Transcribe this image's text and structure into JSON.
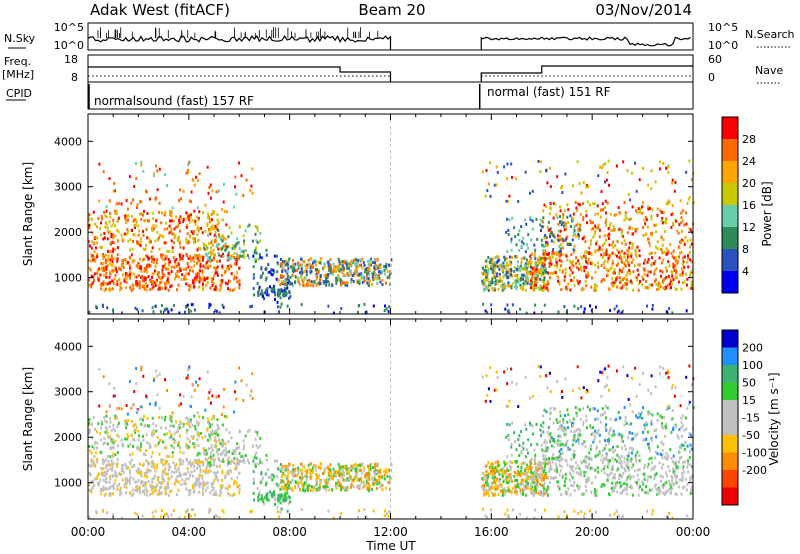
{
  "header": {
    "station": "Adak West (fitACF)",
    "beam": "Beam 20",
    "date": "03/Nov/2014"
  },
  "side_labels": {
    "nsky": "N.Sky",
    "nsearch": "N.Search",
    "freq_line1": "Freq.",
    "freq_line2": "[MHz]",
    "nave": "Nave",
    "cpid": "CPID"
  },
  "noise_panel": {
    "left_ticks": [
      "10^5",
      "10^0"
    ],
    "right_ticks": [
      "10^5",
      "10^0"
    ]
  },
  "freq_panel": {
    "left_ticks": [
      "18",
      "8"
    ],
    "right_ticks": [
      "60",
      "0"
    ]
  },
  "cpid_panel": {
    "segments": [
      {
        "label": "normalsound (fast) 157 RF",
        "start": 0,
        "end": 12
      },
      {
        "label": "normal (fast) 151 RF",
        "start": 15.5,
        "end": 24
      }
    ]
  },
  "colors": {
    "power_scale": [
      "#0000ee",
      "#2a52be",
      "#2e8b57",
      "#66cdaa",
      "#c8c800",
      "#ffa500",
      "#ff6a00",
      "#ff0000"
    ],
    "velocity_scale": [
      "#ee0000",
      "#ff4500",
      "#ff8c00",
      "#ffc000",
      "#c0c0c0",
      "#c0c0c0",
      "#32cd32",
      "#3cb371",
      "#1e90ff",
      "#0000cd"
    ]
  },
  "chart_data": [
    {
      "type": "heatmap",
      "panel": "power",
      "ylabel": "Slant Range [km]",
      "y_ticks": [
        "1000",
        "2000",
        "3000",
        "4000"
      ],
      "ylim": [
        200,
        4600
      ],
      "x_ticks": [
        "00:00",
        "04:00",
        "08:00",
        "12:00",
        "16:00",
        "20:00",
        "00:00"
      ],
      "xlim": [
        0,
        24
      ],
      "colorbar_label": "Power [dB]",
      "colorbar_ticks": [
        "4",
        "8",
        "12",
        "16",
        "20",
        "24",
        "28"
      ],
      "colorbar_range": [
        0,
        32
      ],
      "data_gaps": [
        [
          12,
          15.5
        ]
      ]
    },
    {
      "type": "heatmap",
      "panel": "velocity",
      "ylabel": "Slant Range [km]",
      "y_ticks": [
        "1000",
        "2000",
        "3000",
        "4000"
      ],
      "ylim": [
        200,
        4600
      ],
      "x_ticks": [
        "00:00",
        "04:00",
        "08:00",
        "12:00",
        "16:00",
        "20:00",
        "00:00"
      ],
      "xlim": [
        0,
        24
      ],
      "xlabel": "Time UT",
      "colorbar_label": "Velocity [m s⁻¹]",
      "colorbar_ticks": [
        "200",
        "100",
        "50",
        "15",
        "-15",
        "-50",
        "-100",
        "-200"
      ],
      "data_gaps": [
        [
          12,
          15.5
        ]
      ]
    }
  ]
}
